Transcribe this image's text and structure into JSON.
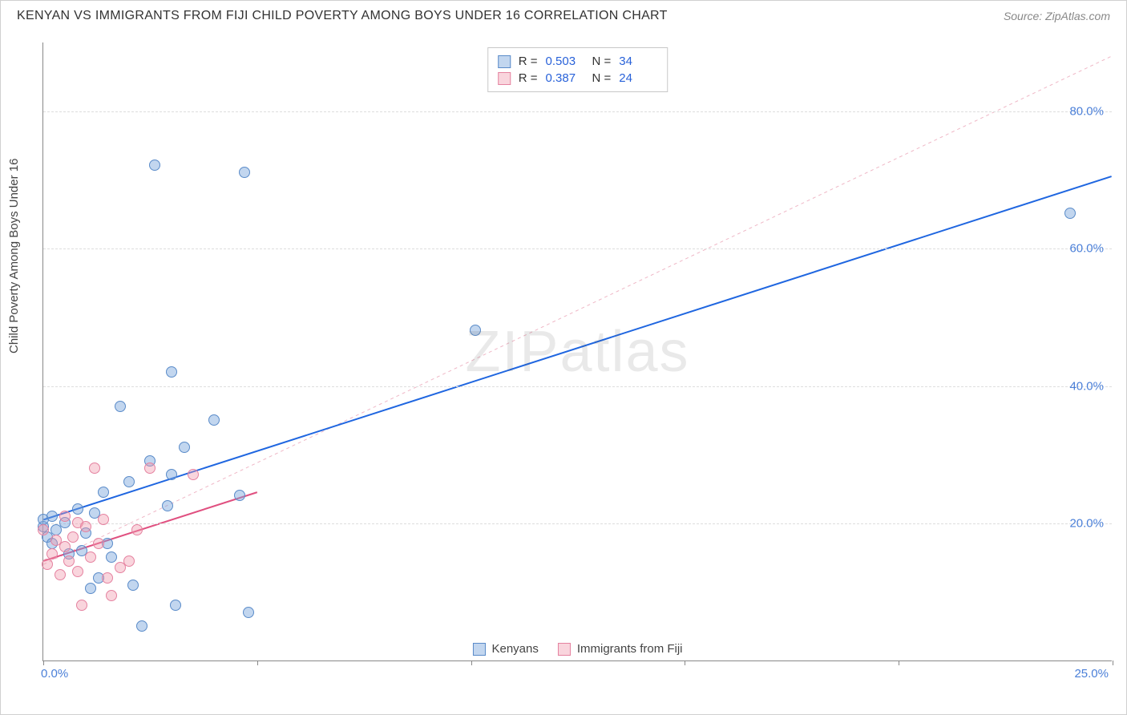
{
  "title": "KENYAN VS IMMIGRANTS FROM FIJI CHILD POVERTY AMONG BOYS UNDER 16 CORRELATION CHART",
  "source": "Source: ZipAtlas.com",
  "ylabel": "Child Poverty Among Boys Under 16",
  "watermark": "ZIPatlas",
  "chart": {
    "type": "scatter",
    "xlim": [
      0,
      25
    ],
    "ylim": [
      0,
      90
    ],
    "x_ticks": [
      0,
      5,
      10,
      15,
      20,
      25
    ],
    "x_tick_labels": {
      "0": "0.0%",
      "25": "25.0%"
    },
    "y_gridlines": [
      20,
      40,
      60,
      80
    ],
    "y_tick_labels": {
      "20": "20.0%",
      "40": "40.0%",
      "60": "60.0%",
      "80": "80.0%"
    },
    "point_radius": 7,
    "background_color": "#ffffff",
    "grid_color": "#dddddd",
    "axis_color": "#888888",
    "series": [
      {
        "name": "Kenyans",
        "color_fill": "rgba(120,165,220,0.45)",
        "color_stroke": "#5a8bc9",
        "R": "0.503",
        "N": "34",
        "trend_solid": {
          "x1": 0,
          "y1": 20.5,
          "x2": 25,
          "y2": 70.5,
          "color": "#1f66e0",
          "width": 2
        },
        "trend_dashed": {
          "x1": 0,
          "y1": 14.0,
          "x2": 25,
          "y2": 88.0,
          "color": "#efb7c6",
          "width": 1,
          "dash": "4 4"
        },
        "points": [
          [
            0.0,
            19.5
          ],
          [
            0.0,
            20.5
          ],
          [
            0.1,
            18.0
          ],
          [
            0.2,
            21.0
          ],
          [
            0.2,
            17.0
          ],
          [
            0.3,
            19.0
          ],
          [
            0.5,
            20.0
          ],
          [
            0.6,
            15.5
          ],
          [
            0.8,
            22.0
          ],
          [
            0.9,
            16.0
          ],
          [
            1.0,
            18.5
          ],
          [
            1.1,
            10.5
          ],
          [
            1.2,
            21.5
          ],
          [
            1.3,
            12.0
          ],
          [
            1.4,
            24.5
          ],
          [
            1.5,
            17.0
          ],
          [
            1.6,
            15.0
          ],
          [
            1.8,
            37.0
          ],
          [
            2.0,
            26.0
          ],
          [
            2.1,
            11.0
          ],
          [
            2.3,
            5.0
          ],
          [
            2.5,
            29.0
          ],
          [
            2.6,
            72.0
          ],
          [
            2.9,
            22.5
          ],
          [
            3.0,
            42.0
          ],
          [
            3.0,
            27.0
          ],
          [
            3.1,
            8.0
          ],
          [
            3.3,
            31.0
          ],
          [
            4.0,
            35.0
          ],
          [
            4.6,
            24.0
          ],
          [
            4.7,
            71.0
          ],
          [
            4.8,
            7.0
          ],
          [
            10.1,
            48.0
          ],
          [
            24.0,
            65.0
          ]
        ]
      },
      {
        "name": "Immigrants from Fiji",
        "color_fill": "rgba(240,150,170,0.4)",
        "color_stroke": "#e582a0",
        "R": "0.387",
        "N": "24",
        "trend_solid": {
          "x1": 0,
          "y1": 14.5,
          "x2": 5,
          "y2": 24.5,
          "color": "#e05080",
          "width": 2
        },
        "points": [
          [
            0.0,
            19.0
          ],
          [
            0.1,
            14.0
          ],
          [
            0.2,
            15.5
          ],
          [
            0.3,
            17.5
          ],
          [
            0.4,
            12.5
          ],
          [
            0.5,
            16.5
          ],
          [
            0.5,
            21.0
          ],
          [
            0.6,
            14.5
          ],
          [
            0.7,
            18.0
          ],
          [
            0.8,
            20.0
          ],
          [
            0.8,
            13.0
          ],
          [
            0.9,
            8.0
          ],
          [
            1.0,
            19.5
          ],
          [
            1.1,
            15.0
          ],
          [
            1.2,
            28.0
          ],
          [
            1.3,
            17.0
          ],
          [
            1.4,
            20.5
          ],
          [
            1.5,
            12.0
          ],
          [
            1.6,
            9.5
          ],
          [
            1.8,
            13.5
          ],
          [
            2.0,
            14.5
          ],
          [
            2.5,
            28.0
          ],
          [
            2.2,
            19.0
          ],
          [
            3.5,
            27.0
          ]
        ]
      }
    ]
  },
  "legend_bottom": [
    {
      "swatch": "blue",
      "label": "Kenyans"
    },
    {
      "swatch": "pink",
      "label": "Immigrants from Fiji"
    }
  ]
}
